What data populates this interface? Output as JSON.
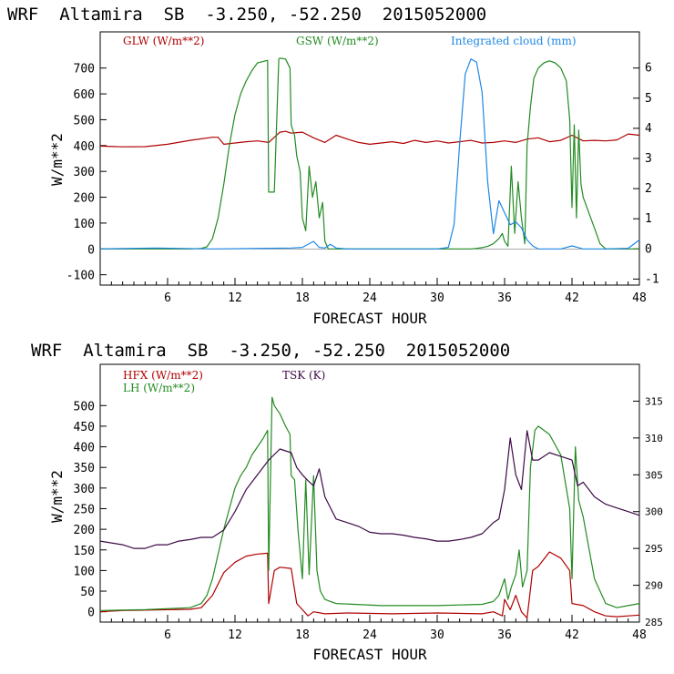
{
  "chart_data": [
    {
      "type": "line",
      "title": "WRF  Altamira  SB  -3.250, -52.250  2015052000",
      "xlabel": "FORECAST HOUR",
      "ylabel": "W/m**2",
      "xlim": [
        0,
        48
      ],
      "xticks": [
        6,
        12,
        18,
        24,
        30,
        36,
        42,
        48
      ],
      "ylim": [
        -140,
        840
      ],
      "yticks": [
        -100,
        0,
        100,
        200,
        300,
        400,
        500,
        600,
        700
      ],
      "y2lim": [
        -1.2,
        7.2
      ],
      "y2ticks": [
        -1,
        0,
        1,
        2,
        3,
        4,
        5,
        6
      ],
      "series": [
        {
          "name": "GLW (W/m**2)",
          "axis": "left",
          "color": "#b00000",
          "x": [
            0,
            2,
            4,
            6,
            8,
            10,
            10.5,
            11,
            12,
            13,
            14,
            15,
            16,
            16.5,
            17,
            17.5,
            18,
            19,
            20,
            21,
            22,
            23,
            24,
            25,
            26,
            27,
            28,
            29,
            30,
            31,
            32,
            33,
            34,
            35,
            36,
            37,
            38,
            39,
            40,
            41,
            42,
            43,
            44,
            45,
            46,
            47,
            48
          ],
          "y": [
            398,
            395,
            396,
            405,
            420,
            432,
            432,
            405,
            410,
            415,
            418,
            412,
            452,
            455,
            448,
            450,
            452,
            430,
            412,
            440,
            425,
            412,
            405,
            410,
            415,
            408,
            420,
            412,
            418,
            410,
            415,
            420,
            410,
            412,
            418,
            412,
            425,
            430,
            415,
            420,
            440,
            418,
            420,
            418,
            422,
            445,
            440
          ]
        },
        {
          "name": "GSW (W/m**2)",
          "axis": "left",
          "color": "#228b22",
          "x": [
            0,
            8,
            9,
            9.5,
            10,
            10.5,
            11,
            11.5,
            12,
            12.5,
            13,
            13.5,
            14,
            14.5,
            14.9,
            15,
            15.5,
            15.9,
            16,
            16.5,
            16.9,
            17,
            17.3,
            17.5,
            17.8,
            18,
            18.3,
            18.6,
            18.9,
            19.2,
            19.5,
            19.8,
            20,
            20.3,
            20.6,
            21,
            21.5,
            22,
            25,
            29,
            31,
            32,
            33,
            33.5,
            34,
            34.5,
            35,
            35.5,
            35.8,
            36,
            36.3,
            36.6,
            36.9,
            37.2,
            37.5,
            37.8,
            38,
            38.3,
            38.6,
            39,
            39.5,
            40,
            40.5,
            41,
            41.5,
            41.8,
            42,
            42.2,
            42.4,
            42.6,
            42.8,
            43,
            43.5,
            44,
            44.5,
            45,
            46,
            48
          ],
          "y": [
            0,
            0,
            2,
            8,
            40,
            120,
            250,
            400,
            520,
            600,
            650,
            690,
            720,
            725,
            730,
            220,
            220,
            735,
            738,
            735,
            700,
            480,
            440,
            360,
            300,
            120,
            70,
            320,
            200,
            260,
            120,
            180,
            30,
            0,
            0,
            0,
            0,
            0,
            0,
            0,
            0,
            0,
            0,
            2,
            5,
            10,
            20,
            40,
            60,
            30,
            10,
            320,
            60,
            260,
            120,
            20,
            400,
            550,
            660,
            700,
            720,
            728,
            720,
            700,
            650,
            500,
            160,
            480,
            120,
            460,
            250,
            200,
            140,
            80,
            20,
            0,
            0,
            0
          ]
        },
        {
          "name": "Integrated cloud (mm)",
          "axis": "right",
          "color": "#1e88e5",
          "x": [
            0,
            5,
            10,
            15,
            17,
            18,
            19,
            19.5,
            20,
            20.5,
            21,
            22,
            30,
            31,
            31.5,
            32,
            32.5,
            33,
            33.5,
            34,
            34.5,
            35,
            35.5,
            36,
            36.5,
            37,
            37.5,
            38,
            38.5,
            39,
            41,
            42,
            43,
            45,
            47,
            48
          ],
          "y": [
            0,
            0.03,
            0,
            0.02,
            0.03,
            0.05,
            0.25,
            0.05,
            0.03,
            0.15,
            0.03,
            0,
            0,
            0.05,
            0.8,
            3.5,
            5.8,
            6.3,
            6.2,
            5.2,
            2.2,
            0.5,
            1.6,
            1.2,
            0.8,
            0.9,
            0.7,
            0.3,
            0.1,
            0,
            0,
            0.1,
            0,
            0,
            0.02,
            0.3
          ]
        }
      ]
    },
    {
      "type": "line",
      "title": "WRF  Altamira  SB  -3.250, -52.250  2015052000",
      "xlabel": "FORECAST HOUR",
      "ylabel": "W/m**2",
      "xlim": [
        0,
        48
      ],
      "xticks": [
        6,
        12,
        18,
        24,
        30,
        36,
        42,
        48
      ],
      "ylim": [
        -25,
        600
      ],
      "yticks": [
        0,
        50,
        100,
        150,
        200,
        250,
        300,
        350,
        400,
        450,
        500
      ],
      "y2lim": [
        285,
        320
      ],
      "y2ticks": [
        285,
        290,
        295,
        300,
        305,
        310,
        315
      ],
      "series": [
        {
          "name": "HFX (W/m**2)",
          "axis": "left",
          "color": "#b00000",
          "x": [
            0,
            2,
            4,
            6,
            8,
            9,
            10,
            11,
            12,
            13,
            14,
            14.9,
            15,
            15.5,
            16,
            17,
            17.5,
            18,
            18.5,
            19,
            20,
            22,
            26,
            30,
            34,
            35,
            35.8,
            36,
            36.5,
            37,
            37.5,
            38,
            38.5,
            39,
            40,
            41,
            41.8,
            42,
            43,
            44,
            45,
            46,
            47,
            48
          ],
          "y": [
            0,
            3,
            4,
            5,
            6,
            10,
            40,
            95,
            120,
            135,
            140,
            142,
            20,
            100,
            108,
            105,
            20,
            5,
            -10,
            0,
            -5,
            -3,
            -5,
            -3,
            -5,
            0,
            -10,
            30,
            5,
            40,
            0,
            -15,
            100,
            110,
            145,
            130,
            100,
            20,
            15,
            0,
            -10,
            -12,
            -10,
            -8
          ]
        },
        {
          "name": "LH (W/m**2)",
          "axis": "left",
          "color": "#228b22",
          "x": [
            0,
            4,
            8,
            9,
            9.5,
            10,
            10.5,
            11,
            11.5,
            12,
            12.5,
            13,
            13.5,
            14,
            14.5,
            14.9,
            15,
            15.3,
            15.5,
            16,
            16.5,
            16.9,
            17,
            17.3,
            17.6,
            18,
            18.3,
            18.6,
            19,
            19.3,
            19.6,
            20,
            20.5,
            21,
            25,
            30,
            34,
            35,
            35.5,
            36,
            36.3,
            36.6,
            37,
            37.3,
            37.6,
            38,
            38.3,
            38.7,
            39,
            40,
            41,
            41.8,
            42,
            42.3,
            42.6,
            43,
            44,
            45,
            46,
            47,
            48
          ],
          "y": [
            3,
            5,
            10,
            20,
            40,
            80,
            140,
            200,
            250,
            300,
            330,
            350,
            380,
            400,
            420,
            440,
            100,
            520,
            500,
            480,
            450,
            430,
            330,
            320,
            200,
            80,
            320,
            90,
            330,
            100,
            50,
            30,
            25,
            20,
            15,
            15,
            18,
            25,
            40,
            80,
            30,
            60,
            90,
            150,
            60,
            100,
            350,
            440,
            450,
            430,
            380,
            250,
            80,
            400,
            270,
            230,
            80,
            20,
            10,
            15,
            20
          ]
        },
        {
          "name": "TSK (K)",
          "axis": "right",
          "color": "#3c0a46",
          "x": [
            0,
            2,
            3,
            4,
            5,
            6,
            7,
            8,
            9,
            10,
            11,
            12,
            13,
            14,
            15,
            16,
            17,
            17.5,
            18,
            18.5,
            19,
            19.5,
            20,
            21,
            22,
            23,
            24,
            25,
            26,
            27,
            28,
            29,
            30,
            31,
            32,
            33,
            34,
            35,
            35.5,
            36,
            36.5,
            37,
            37.5,
            38,
            38.5,
            39,
            40,
            41,
            42,
            42.5,
            43,
            44,
            45,
            46,
            47,
            48
          ],
          "y": [
            296,
            295.5,
            295,
            295,
            295.5,
            295.5,
            296,
            296.2,
            296.5,
            296.5,
            297.5,
            300,
            303,
            305,
            307,
            308.5,
            308,
            306,
            305,
            304.2,
            303.5,
            305.8,
            302,
            299,
            298.5,
            298,
            297.2,
            297,
            297,
            296.8,
            296.5,
            296.3,
            296,
            296,
            296.2,
            296.5,
            297,
            298.5,
            299,
            303,
            310,
            305,
            303,
            311,
            307,
            307,
            308,
            307.5,
            307,
            303.5,
            304,
            302,
            301,
            300.5,
            300,
            299.5
          ]
        }
      ]
    }
  ]
}
